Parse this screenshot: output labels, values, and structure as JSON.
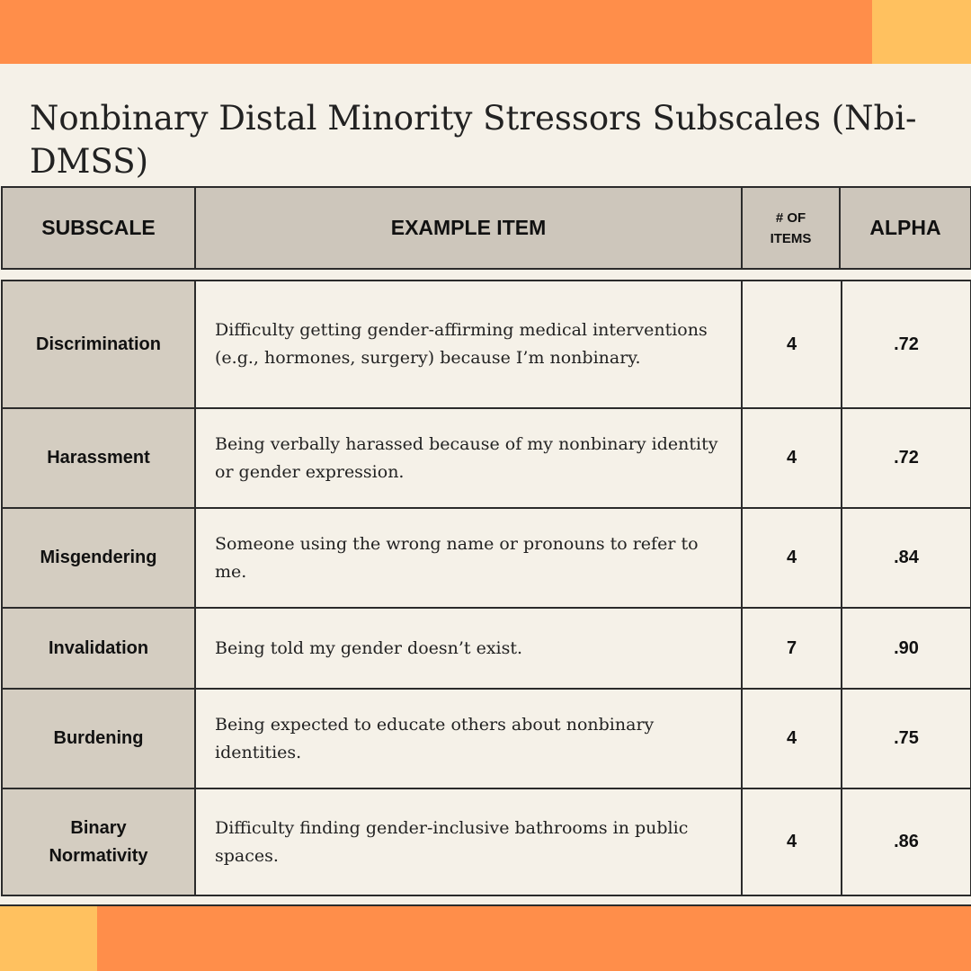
{
  "title": "Nonbinary Distal Minority Stressors Subscales (Nbi-DMSS)",
  "colors": {
    "orange": "#ff8e4a",
    "yellow": "#ffc15f",
    "background": "#f5f1e8",
    "header_fill": "#cdc6bb",
    "subscale_fill": "#d4cdc1"
  },
  "table": {
    "headers": {
      "subscale": "SUBSCALE",
      "example_item": "EXAMPLE ITEM",
      "num_items": "# OF ITEMS",
      "alpha": "ALPHA"
    },
    "rows": [
      {
        "subscale": "Discrimination",
        "example": "Difficulty getting gender-affirming medical interventions (e.g., hormones, surgery) because I’m nonbinary.",
        "items": "4",
        "alpha": ".72"
      },
      {
        "subscale": "Harassment",
        "example": "Being verbally harassed because of my nonbinary identity or gender expression.",
        "items": "4",
        "alpha": ".72"
      },
      {
        "subscale": "Misgendering",
        "example": "Someone using the wrong name or pronouns to refer to me.",
        "items": "4",
        "alpha": ".84"
      },
      {
        "subscale": "Invalidation",
        "example": "Being told my gender doesn’t exist.",
        "items": "7",
        "alpha": ".90"
      },
      {
        "subscale": "Burdening",
        "example": "Being expected to educate others about nonbinary identities.",
        "items": "4",
        "alpha": ".75"
      },
      {
        "subscale": "Binary Normativity",
        "example": "Difficulty finding gender-inclusive bathrooms in public spaces.",
        "items": "4",
        "alpha": ".86"
      }
    ]
  }
}
